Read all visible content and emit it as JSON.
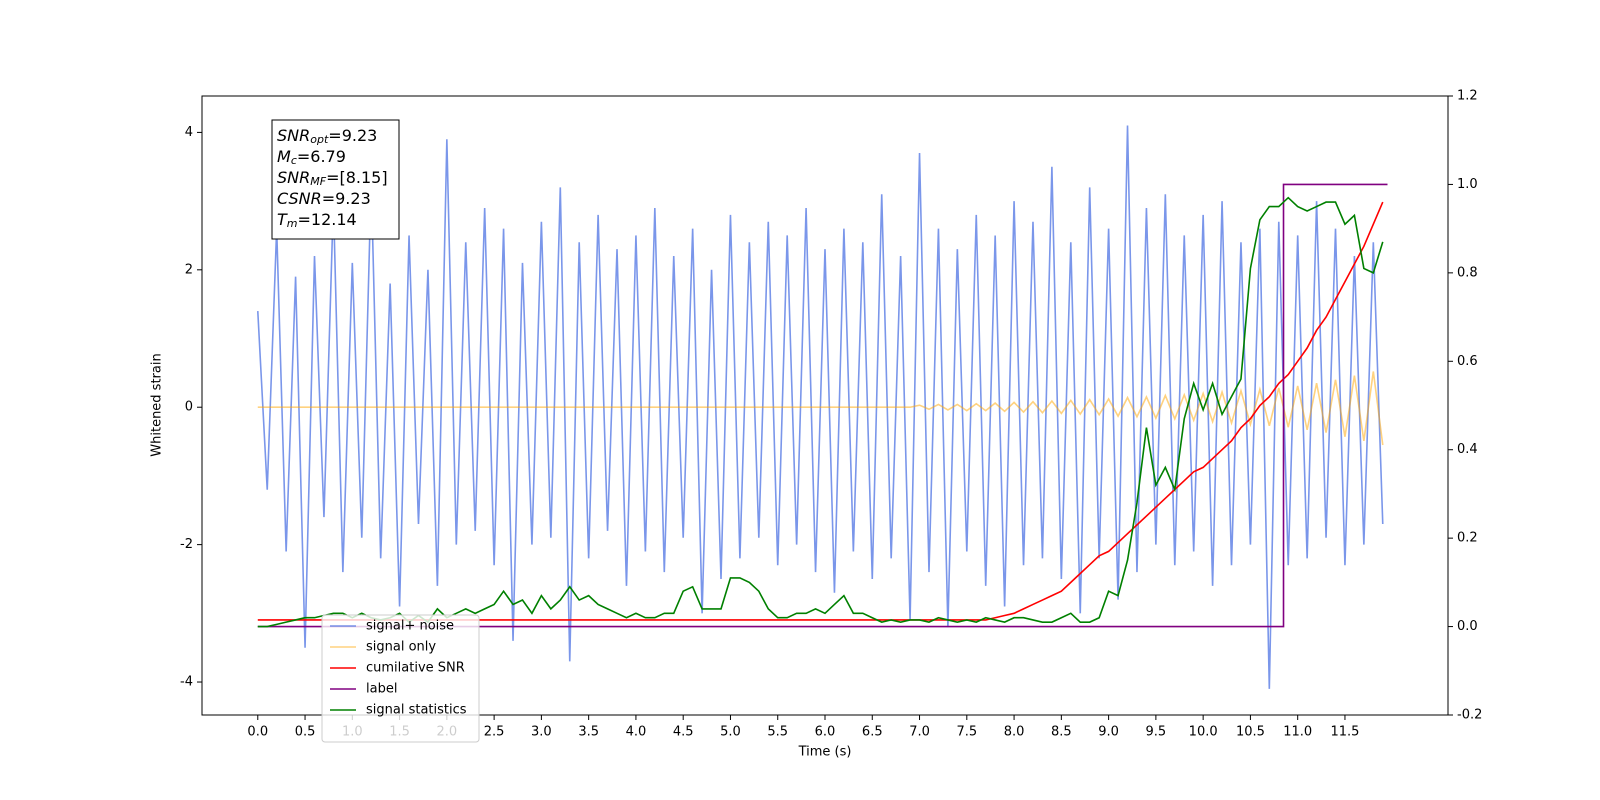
{
  "chart_data": {
    "type": "line",
    "xlabel": "Time (s)",
    "ylabel": "Whitened strain",
    "xlim": [
      -0.59,
      12.59
    ],
    "ylim": [
      -4.48,
      4.53
    ],
    "y2lim": [
      -0.2,
      1.2
    ],
    "xticks": [
      {
        "value": 0,
        "label": "0.0"
      },
      0.5,
      {
        "value": 1,
        "label": "1.0"
      },
      1.5,
      {
        "value": 2,
        "label": "2.0"
      },
      2.5,
      {
        "value": 3,
        "label": "3.0"
      },
      3.5,
      {
        "value": 4,
        "label": "4.0"
      },
      4.5,
      {
        "value": 5,
        "label": "5.0"
      },
      5.5,
      {
        "value": 6,
        "label": "6.0"
      },
      6.5,
      {
        "value": 7,
        "label": "7.0"
      },
      7.5,
      {
        "value": 8,
        "label": "8.0"
      },
      8.5,
      {
        "value": 9,
        "label": "9.0"
      },
      9.5,
      {
        "value": 10,
        "label": "10.0"
      },
      10.5,
      {
        "value": 11,
        "label": "11.0"
      },
      11.5
    ],
    "yticks": [
      -4,
      -2,
      0,
      2,
      4
    ],
    "y2ticks": [
      -0.2,
      {
        "value": 0,
        "label": "0.0"
      },
      0.2,
      0.4,
      0.6,
      0.8,
      {
        "value": 1,
        "label": "1.0"
      },
      1.2
    ],
    "legend": "lower left",
    "annotation": [
      {
        "main": "SNR",
        "sub": "opt",
        "rest": "=9.23"
      },
      {
        "main": "M",
        "sub": "c",
        "rest": "=6.79"
      },
      {
        "main": "SNR",
        "sub": "MF",
        "rest": "=[8.15]"
      },
      {
        "main": "CSNR",
        "sub": "",
        "rest": "=9.23"
      },
      {
        "main": "T",
        "sub": "m",
        "rest": "=12.14"
      }
    ],
    "x": [
      0.0,
      0.1,
      0.2,
      0.3,
      0.4,
      0.5,
      0.6,
      0.7,
      0.8,
      0.9,
      1.0,
      1.1,
      1.2,
      1.3,
      1.4,
      1.5,
      1.6,
      1.7,
      1.8,
      1.9,
      2.0,
      2.1,
      2.2,
      2.3,
      2.4,
      2.5,
      2.6,
      2.7,
      2.8,
      2.9,
      3.0,
      3.1,
      3.2,
      3.3,
      3.4,
      3.5,
      3.6,
      3.7,
      3.8,
      3.9,
      4.0,
      4.1,
      4.2,
      4.3,
      4.4,
      4.5,
      4.6,
      4.7,
      4.8,
      4.9,
      5.0,
      5.1,
      5.2,
      5.3,
      5.4,
      5.5,
      5.6,
      5.7,
      5.8,
      5.9,
      6.0,
      6.1,
      6.2,
      6.3,
      6.4,
      6.5,
      6.6,
      6.7,
      6.8,
      6.9,
      7.0,
      7.1,
      7.2,
      7.3,
      7.4,
      7.5,
      7.6,
      7.7,
      7.8,
      7.9,
      8.0,
      8.1,
      8.2,
      8.3,
      8.4,
      8.5,
      8.6,
      8.7,
      8.8,
      8.9,
      9.0,
      9.1,
      9.2,
      9.3,
      9.4,
      9.5,
      9.6,
      9.7,
      9.8,
      9.9,
      10.0,
      10.1,
      10.2,
      10.3,
      10.4,
      10.5,
      10.6,
      10.7,
      10.8,
      10.9,
      11.0,
      11.1,
      11.2,
      11.3,
      11.4,
      11.5,
      11.6,
      11.7,
      11.8,
      11.9
    ],
    "series": [
      {
        "name": "signal+ noise",
        "color": "#4169e1",
        "alpha": 0.7,
        "values": [
          1.4,
          -1.2,
          2.6,
          -2.1,
          1.9,
          -3.5,
          2.2,
          -1.6,
          3.0,
          -2.4,
          2.1,
          -1.9,
          3.3,
          -2.2,
          1.8,
          -2.9,
          2.5,
          -1.7,
          2.0,
          -2.6,
          3.9,
          -2.0,
          2.4,
          -1.8,
          2.9,
          -2.3,
          2.6,
          -3.4,
          2.1,
          -2.0,
          2.7,
          -1.9,
          3.2,
          -3.7,
          2.4,
          -2.2,
          2.8,
          -1.8,
          2.3,
          -2.6,
          2.5,
          -2.1,
          2.9,
          -2.4,
          2.2,
          -1.9,
          2.6,
          -3.0,
          2.0,
          -2.5,
          2.8,
          -2.2,
          2.4,
          -1.9,
          2.7,
          -2.3,
          2.5,
          -2.0,
          2.9,
          -2.4,
          2.3,
          -2.7,
          2.6,
          -2.1,
          2.4,
          -2.5,
          3.1,
          -2.2,
          2.2,
          -3.1,
          3.7,
          -2.4,
          2.6,
          -3.2,
          2.3,
          -2.1,
          2.8,
          -2.6,
          2.5,
          -2.9,
          3.0,
          -2.3,
          2.7,
          -2.2,
          3.5,
          -2.5,
          2.4,
          -3.0,
          3.2,
          -2.2,
          2.6,
          -2.8,
          4.1,
          -2.4,
          2.9,
          -2.0,
          3.1,
          -2.3,
          2.5,
          -2.1,
          2.8,
          -2.6,
          3.0,
          -2.3,
          2.4,
          -2.0,
          2.6,
          -4.1,
          2.7,
          -2.3,
          2.5,
          -2.2,
          3.0,
          -1.9,
          2.6,
          -2.3,
          2.2,
          -2.0,
          2.4,
          -1.7
        ]
      },
      {
        "name": "signal only",
        "color": "#ffa500",
        "alpha": 0.5,
        "values": [
          0,
          0,
          0,
          0,
          0,
          0,
          0,
          0,
          0,
          0,
          0,
          0,
          0,
          0,
          0,
          0,
          0,
          0,
          0,
          0,
          0,
          0,
          0,
          0,
          0,
          0,
          0,
          0,
          0,
          0,
          0,
          0,
          0,
          0,
          0,
          0,
          0,
          0,
          0,
          0,
          0,
          0,
          0,
          0,
          0,
          0,
          0,
          0,
          0,
          0,
          0,
          0,
          0,
          0,
          0,
          0,
          0,
          0,
          0,
          0,
          0,
          0,
          0,
          0,
          0,
          0,
          0,
          0,
          0,
          0,
          0.03,
          -0.03,
          0.04,
          -0.04,
          0.04,
          -0.05,
          0.05,
          -0.05,
          0.06,
          -0.06,
          0.07,
          -0.07,
          0.08,
          -0.08,
          0.09,
          -0.09,
          0.1,
          -0.1,
          0.11,
          -0.11,
          0.12,
          -0.13,
          0.14,
          -0.14,
          0.15,
          -0.16,
          0.17,
          -0.17,
          0.18,
          -0.19,
          0.2,
          -0.21,
          0.22,
          -0.23,
          0.24,
          -0.25,
          0.26,
          -0.27,
          0.28,
          -0.29,
          0.31,
          -0.33,
          0.35,
          -0.37,
          0.4,
          -0.43,
          0.46,
          -0.49,
          0.52,
          -0.55
        ]
      },
      {
        "name": "cumilative SNR",
        "color": "#ff0000",
        "axis": "y2",
        "values": [
          0.015,
          0.015,
          0.015,
          0.015,
          0.015,
          0.015,
          0.015,
          0.015,
          0.015,
          0.015,
          0.015,
          0.015,
          0.015,
          0.015,
          0.015,
          0.015,
          0.015,
          0.015,
          0.015,
          0.015,
          0.015,
          0.015,
          0.015,
          0.015,
          0.015,
          0.015,
          0.015,
          0.015,
          0.015,
          0.015,
          0.015,
          0.015,
          0.015,
          0.015,
          0.015,
          0.015,
          0.015,
          0.015,
          0.015,
          0.015,
          0.015,
          0.015,
          0.015,
          0.015,
          0.015,
          0.015,
          0.015,
          0.015,
          0.015,
          0.015,
          0.015,
          0.015,
          0.015,
          0.015,
          0.015,
          0.015,
          0.015,
          0.015,
          0.015,
          0.015,
          0.015,
          0.015,
          0.015,
          0.015,
          0.015,
          0.015,
          0.015,
          0.015,
          0.015,
          0.015,
          0.015,
          0.015,
          0.015,
          0.015,
          0.015,
          0.015,
          0.015,
          0.015,
          0.02,
          0.025,
          0.03,
          0.04,
          0.05,
          0.06,
          0.07,
          0.08,
          0.1,
          0.12,
          0.14,
          0.16,
          0.17,
          0.19,
          0.21,
          0.23,
          0.25,
          0.27,
          0.29,
          0.31,
          0.33,
          0.35,
          0.36,
          0.38,
          0.4,
          0.42,
          0.45,
          0.47,
          0.5,
          0.52,
          0.55,
          0.57,
          0.6,
          0.63,
          0.67,
          0.7,
          0.74,
          0.78,
          0.82,
          0.86,
          0.91,
          0.96
        ]
      },
      {
        "name": "label",
        "color": "#800080",
        "axis": "y2",
        "x": [
          0.0,
          10.85,
          10.85,
          11.95
        ],
        "values": [
          0,
          0,
          1,
          1
        ]
      },
      {
        "name": "signal statistics",
        "color": "#008000",
        "axis": "y2",
        "values": [
          0.0,
          0.0,
          0.005,
          0.01,
          0.015,
          0.02,
          0.02,
          0.025,
          0.03,
          0.03,
          0.02,
          0.03,
          0.02,
          0.015,
          0.02,
          0.03,
          0.01,
          0.025,
          0.01,
          0.04,
          0.02,
          0.03,
          0.04,
          0.03,
          0.04,
          0.05,
          0.08,
          0.05,
          0.06,
          0.03,
          0.07,
          0.04,
          0.06,
          0.09,
          0.06,
          0.07,
          0.05,
          0.04,
          0.03,
          0.02,
          0.03,
          0.02,
          0.02,
          0.03,
          0.03,
          0.08,
          0.09,
          0.04,
          0.04,
          0.04,
          0.11,
          0.11,
          0.1,
          0.08,
          0.04,
          0.02,
          0.02,
          0.03,
          0.03,
          0.04,
          0.03,
          0.05,
          0.07,
          0.03,
          0.03,
          0.02,
          0.01,
          0.015,
          0.01,
          0.015,
          0.015,
          0.01,
          0.02,
          0.015,
          0.01,
          0.015,
          0.01,
          0.02,
          0.015,
          0.01,
          0.02,
          0.02,
          0.015,
          0.01,
          0.01,
          0.02,
          0.03,
          0.01,
          0.01,
          0.02,
          0.08,
          0.07,
          0.15,
          0.28,
          0.45,
          0.32,
          0.36,
          0.31,
          0.47,
          0.55,
          0.49,
          0.55,
          0.48,
          0.52,
          0.56,
          0.81,
          0.92,
          0.95,
          0.95,
          0.97,
          0.95,
          0.94,
          0.95,
          0.96,
          0.96,
          0.91,
          0.93,
          0.81,
          0.8,
          0.87
        ]
      }
    ]
  }
}
